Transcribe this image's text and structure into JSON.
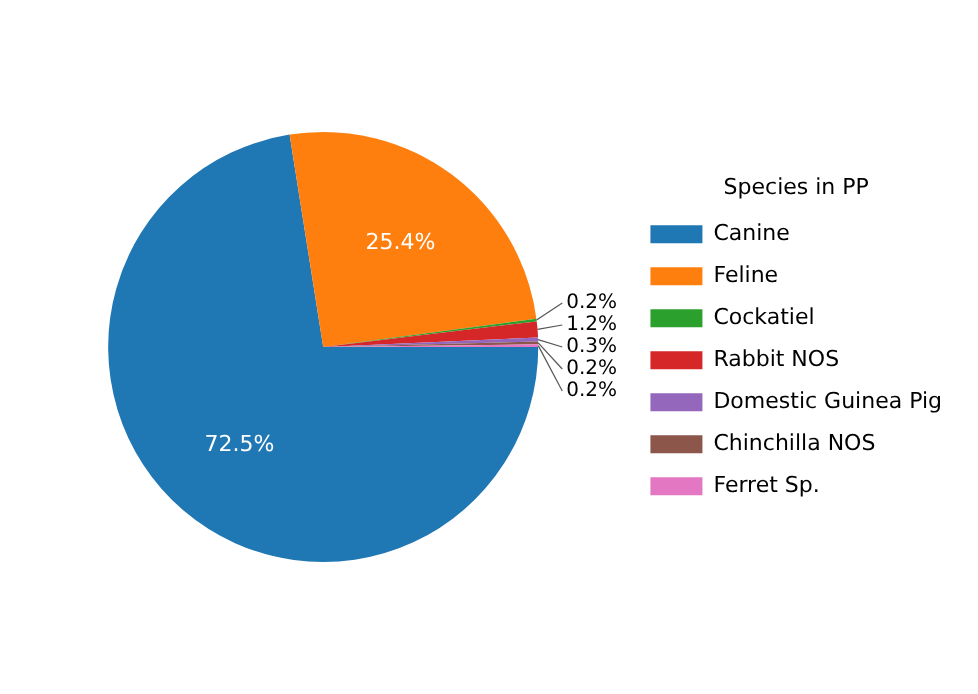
{
  "chart_data": {
    "type": "pie",
    "legend_title": "Species in PP",
    "legend": "right",
    "categories": [
      "Canine",
      "Feline",
      "Cockatiel",
      "Rabbit NOS",
      "Domestic Guinea Pig",
      "Chinchilla NOS",
      "Ferret Sp."
    ],
    "values": [
      72.5,
      25.4,
      0.2,
      1.2,
      0.3,
      0.2,
      0.2
    ],
    "value_labels": [
      "72.5%",
      "25.4%",
      "0.2%",
      "1.2%",
      "0.3%",
      "0.2%",
      "0.2%"
    ],
    "colors": [
      "#1f77b4",
      "#ff7f0e",
      "#2ca02c",
      "#d62728",
      "#9467bd",
      "#8c564b",
      "#e377c2"
    ]
  }
}
